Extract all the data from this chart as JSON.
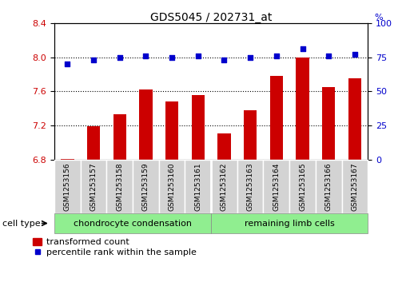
{
  "title": "GDS5045 / 202731_at",
  "samples": [
    "GSM1253156",
    "GSM1253157",
    "GSM1253158",
    "GSM1253159",
    "GSM1253160",
    "GSM1253161",
    "GSM1253162",
    "GSM1253163",
    "GSM1253164",
    "GSM1253165",
    "GSM1253166",
    "GSM1253167"
  ],
  "transformed_count": [
    6.81,
    7.19,
    7.33,
    7.62,
    7.48,
    7.56,
    7.11,
    7.38,
    7.78,
    8.0,
    7.65,
    7.75
  ],
  "percentile_rank": [
    70,
    73,
    75,
    76,
    75,
    76,
    73,
    75,
    76,
    81,
    76,
    77
  ],
  "ylim_left": [
    6.8,
    8.4
  ],
  "ylim_right": [
    0,
    100
  ],
  "yticks_left": [
    6.8,
    7.2,
    7.6,
    8.0,
    8.4
  ],
  "yticks_right": [
    0,
    25,
    50,
    75,
    100
  ],
  "bar_color": "#cc0000",
  "dot_color": "#0000cc",
  "green_color": "#90EE90",
  "cell_type_label": "cell type",
  "group1_label": "chondrocyte condensation",
  "group2_label": "remaining limb cells",
  "group1_count": 6,
  "group2_count": 6,
  "legend_bar_label": "transformed count",
  "legend_dot_label": "percentile rank within the sample",
  "hline_values": [
    7.2,
    7.6,
    8.0
  ],
  "tick_label_color_left": "#cc0000",
  "tick_label_color_right": "#0000cc",
  "bar_width": 0.5,
  "plot_bg_color": "#ffffff",
  "xtick_bg_color": "#d3d3d3"
}
